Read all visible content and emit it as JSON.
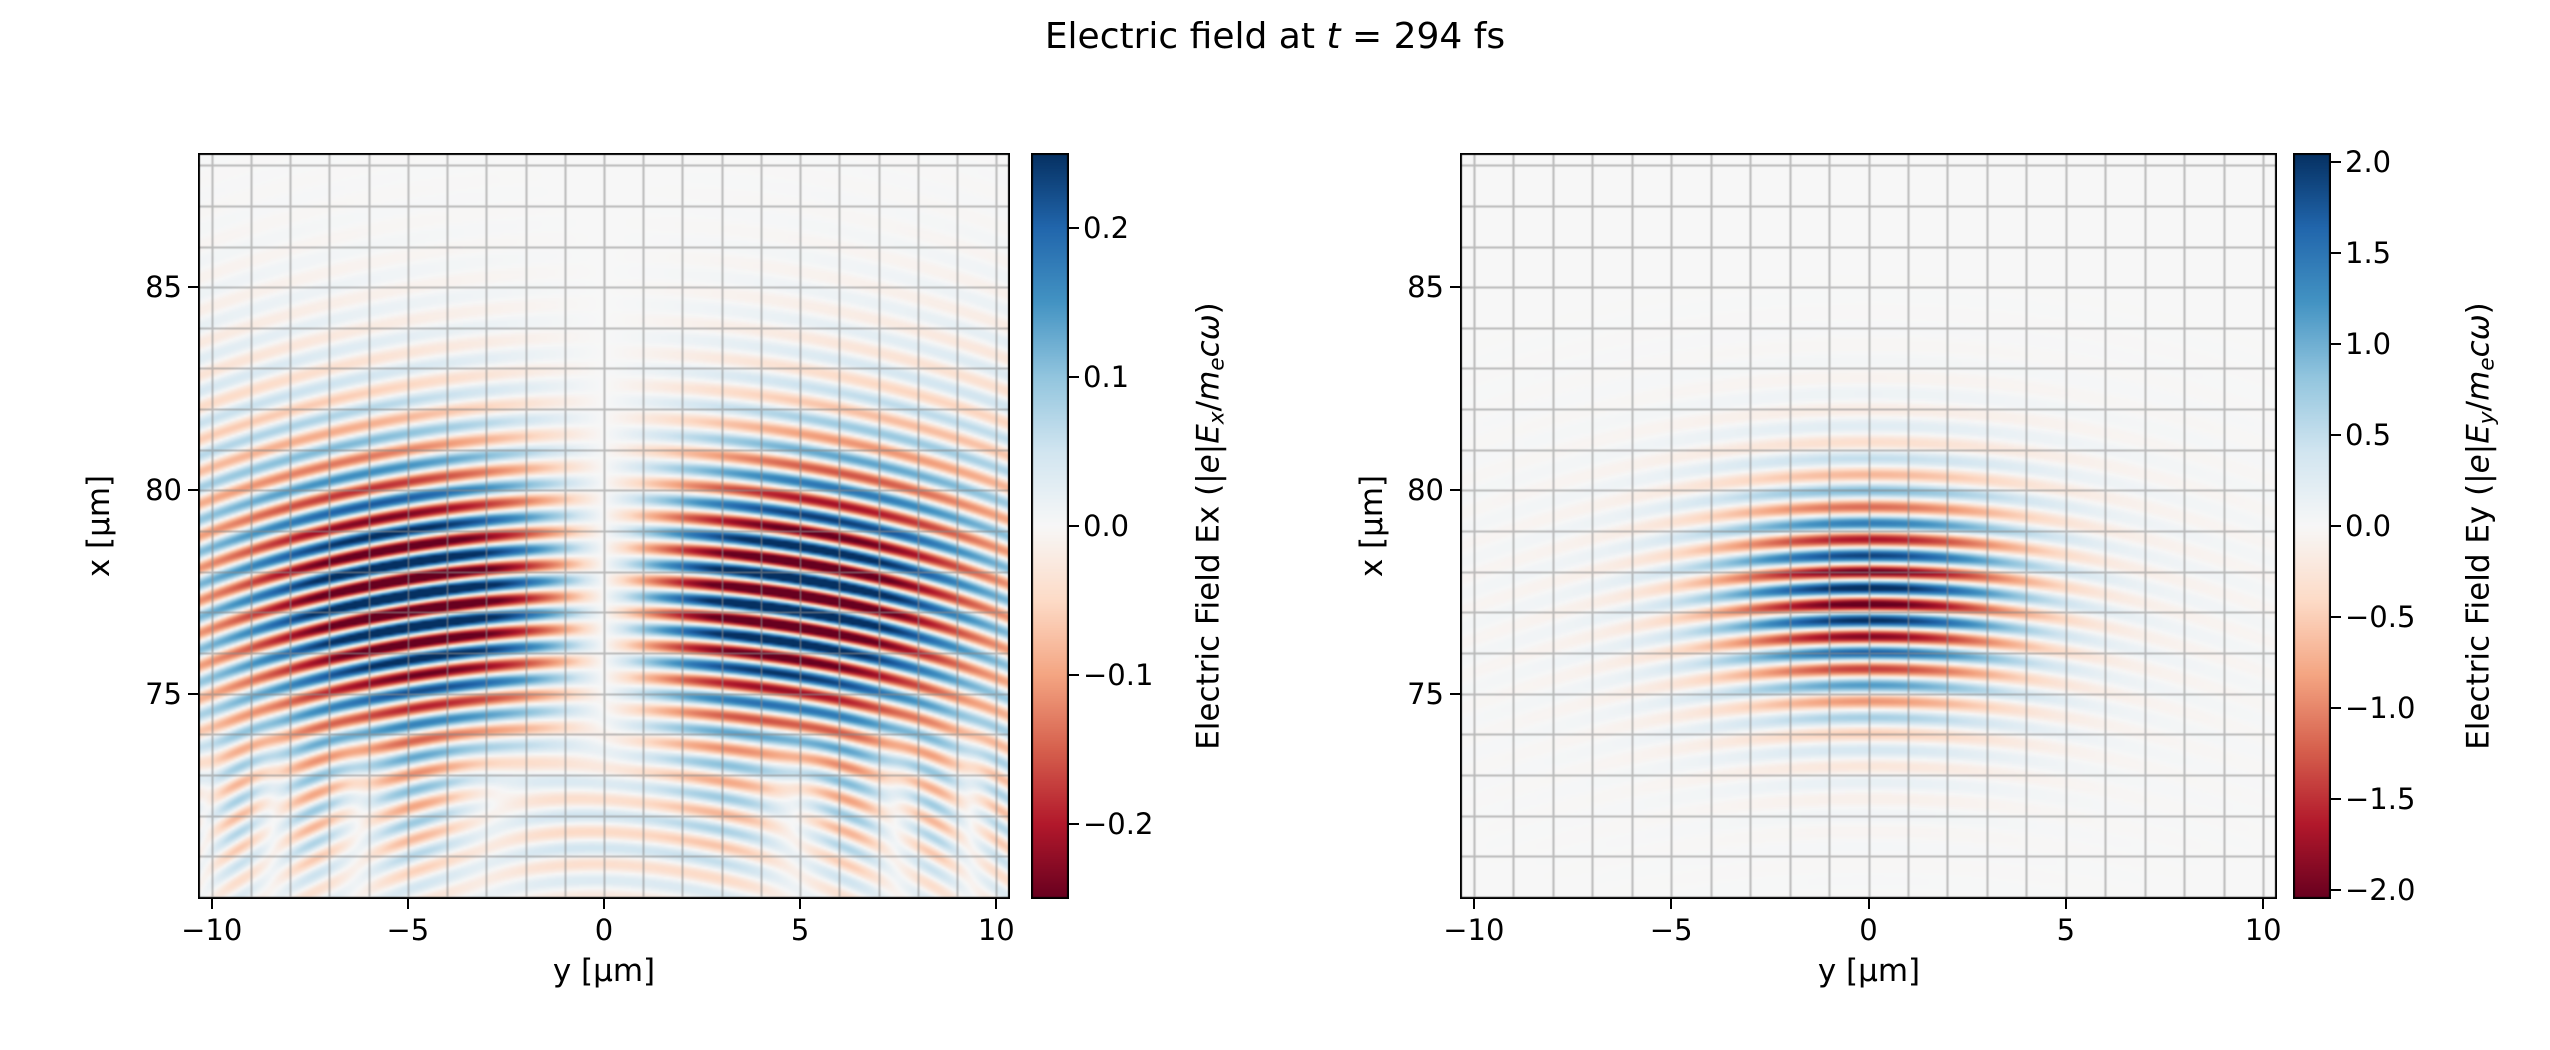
{
  "figure": {
    "title_parts": [
      {
        "t": "Electric field at "
      },
      {
        "t": "t",
        "i": 1
      },
      {
        "t": " = 294 fs"
      }
    ],
    "background_color": "#ffffff",
    "grid_color": "#8a8a8a",
    "spine_color": "#000000"
  },
  "colormap_stops": [
    "#67001f",
    "#b2182b",
    "#d6604d",
    "#f4a582",
    "#fddbc7",
    "#f7f7f7",
    "#d1e5f0",
    "#92c5de",
    "#4393c3",
    "#2166ac",
    "#053061"
  ],
  "chart_data": [
    {
      "type": "heatmap",
      "name": "Ex",
      "title": "Electric field at t = 294 fs",
      "xlabel": "y [μm]",
      "ylabel": "x [μm]",
      "xlim": [
        -10.35,
        10.35
      ],
      "ylim": [
        69.95,
        88.3
      ],
      "xticks": {
        "values": [
          -10,
          -5,
          0,
          5,
          10
        ],
        "labels": [
          "−10",
          "−5",
          "0",
          "5",
          "10"
        ]
      },
      "yticks": {
        "values": [
          85,
          80,
          75
        ],
        "labels": [
          "85",
          "80",
          "75"
        ]
      },
      "grid": true,
      "grid_step_um": 1,
      "colormap": "RdBu",
      "clim": [
        -0.25,
        0.25
      ],
      "colorbar": {
        "ticks": {
          "values": [
            0.2,
            0.1,
            0.0,
            -0.1,
            -0.2
          ],
          "labels": [
            "0.2",
            "0.1",
            "0.0",
            "−0.1",
            "−0.2"
          ]
        },
        "label_parts": [
          {
            "t": "Electric Field Ex (|"
          },
          {
            "t": "e",
            "i": 1
          },
          {
            "t": "|"
          },
          {
            "t": "E",
            "i": 1
          },
          {
            "t": "x",
            "i": 1,
            "s": 1
          },
          {
            "t": "/"
          },
          {
            "t": "m",
            "i": 1
          },
          {
            "t": "e",
            "i": 1,
            "s": 1
          },
          {
            "t": "c",
            "i": 1
          },
          {
            "t": "ω",
            "i": 1
          },
          {
            "t": ")"
          }
        ]
      },
      "field_model": {
        "description": "Weak transverse-odd longitudinal laser field: striped wavefronts around x≈77.4 μm vanishing on axis (y=0), faint curved arcs near x≈71.5 μm",
        "terms": [
          {
            "amp": 0.26,
            "x0": 77.35,
            "sx": 2.3,
            "odd": true,
            "ys": 3.2,
            "sy": 4.5,
            "lambda": 0.8,
            "R": 35,
            "phase": 1.6
          },
          {
            "amp": 0.09,
            "x0": 77.3,
            "sx": 3.5,
            "odd": true,
            "ys": 3.2,
            "sy": 8.0,
            "lambda": 0.8,
            "R": 30,
            "phase": 1.6
          },
          {
            "amp": 0.05,
            "x0": 71.6,
            "sx": 1.4,
            "odd": false,
            "sy": 14.0,
            "lambda": 0.8,
            "R": 12,
            "phase": 0
          }
        ]
      }
    },
    {
      "type": "heatmap",
      "name": "Ey",
      "title": "Electric field at t = 294 fs",
      "xlabel": "y [μm]",
      "ylabel": "x [μm]",
      "xlim": [
        -10.35,
        10.35
      ],
      "ylim": [
        69.95,
        88.3
      ],
      "xticks": {
        "values": [
          -10,
          -5,
          0,
          5,
          10
        ],
        "labels": [
          "−10",
          "−5",
          "0",
          "5",
          "10"
        ]
      },
      "yticks": {
        "values": [
          85,
          80,
          75
        ],
        "labels": [
          "85",
          "80",
          "75"
        ]
      },
      "grid": true,
      "grid_step_um": 1,
      "colormap": "RdBu",
      "clim": [
        -2.05,
        2.05
      ],
      "colorbar": {
        "ticks": {
          "values": [
            2.0,
            1.5,
            1.0,
            0.5,
            0.0,
            -0.5,
            -1.0,
            -1.5,
            -2.0
          ],
          "labels": [
            "2.0",
            "1.5",
            "1.0",
            "0.5",
            "0.0",
            "−0.5",
            "−1.0",
            "−1.5",
            "−2.0"
          ]
        },
        "label_parts": [
          {
            "t": "Electric Field Ey (|"
          },
          {
            "t": "e",
            "i": 1
          },
          {
            "t": "|"
          },
          {
            "t": "E",
            "i": 1
          },
          {
            "t": "y",
            "i": 1,
            "s": 1
          },
          {
            "t": "/"
          },
          {
            "t": "m",
            "i": 1
          },
          {
            "t": "e",
            "i": 1,
            "s": 1
          },
          {
            "t": "c",
            "i": 1
          },
          {
            "t": "ω",
            "i": 1
          },
          {
            "t": ")"
          }
        ]
      },
      "field_model": {
        "description": "Strong transverse laser field: saturated alternating red/blue stripes centered at x≈77.4 μm, y=0, λ≈0.8 μm, with faint curved halo",
        "terms": [
          {
            "amp": 2.0,
            "x0": 77.4,
            "sx": 1.9,
            "odd": false,
            "sy": 2.6,
            "lambda": 0.8,
            "R": 35,
            "phase": 0
          },
          {
            "amp": 0.18,
            "x0": 77.35,
            "sx": 2.9,
            "odd": false,
            "sy": 6.0,
            "lambda": 0.8,
            "R": 30,
            "phase": 0
          }
        ]
      }
    }
  ]
}
